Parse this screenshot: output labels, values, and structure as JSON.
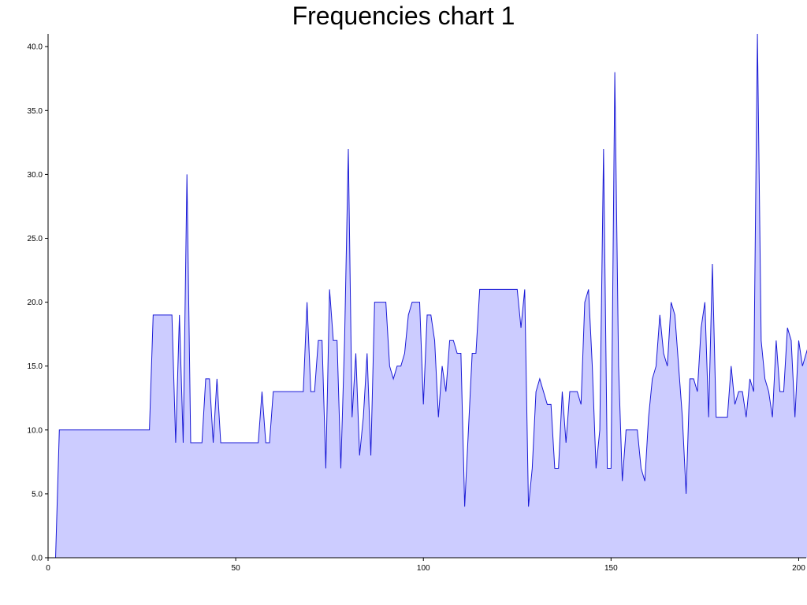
{
  "chart_data": {
    "type": "area",
    "title": "Frequencies chart 1",
    "xlabel": "",
    "ylabel": "",
    "xlim": [
      0,
      202
    ],
    "ylim": [
      0,
      41
    ],
    "x_ticks": [
      0,
      50,
      100,
      150,
      200
    ],
    "x_tick_labels": [
      "0",
      "50",
      "100",
      "150",
      "200"
    ],
    "y_ticks": [
      0,
      5,
      10,
      15,
      20,
      25,
      30,
      35,
      40
    ],
    "y_tick_labels": [
      "0.0",
      "5.0",
      "10.0",
      "15.0",
      "20.0",
      "25.0",
      "30.0",
      "35.0",
      "40.0"
    ],
    "grid": false,
    "legend": "none",
    "colors": {
      "line": "#1a1ad6",
      "fill": "#ccccff"
    },
    "series": [
      {
        "values": [
          0,
          0,
          0,
          10,
          10,
          10,
          10,
          10,
          10,
          10,
          10,
          10,
          10,
          10,
          10,
          10,
          10,
          10,
          10,
          10,
          10,
          10,
          10,
          10,
          10,
          10,
          10,
          10,
          19,
          19,
          19,
          19,
          19,
          19,
          9,
          19,
          9,
          30,
          9,
          9,
          9,
          9,
          14,
          14,
          9,
          14,
          9,
          9,
          9,
          9,
          9,
          9,
          9,
          9,
          9,
          9,
          9,
          13,
          9,
          9,
          13,
          13,
          13,
          13,
          13,
          13,
          13,
          13,
          13,
          20,
          13,
          13,
          17,
          17,
          7,
          21,
          17,
          17,
          7,
          17,
          32,
          11,
          16,
          8,
          11,
          16,
          8,
          20,
          20,
          20,
          20,
          15,
          14,
          15,
          15,
          16,
          19,
          20,
          20,
          20,
          12,
          19,
          19,
          17,
          11,
          15,
          13,
          17,
          17,
          16,
          16,
          4,
          10,
          16,
          16,
          21,
          21,
          21,
          21,
          21,
          21,
          21,
          21,
          21,
          21,
          21,
          18,
          21,
          4,
          7,
          13,
          14,
          13,
          12,
          12,
          7,
          7,
          13,
          9,
          13,
          13,
          13,
          12,
          20,
          21,
          15,
          7,
          10,
          32,
          7,
          7,
          38,
          15,
          6,
          10,
          10,
          10,
          10,
          7,
          6,
          11,
          14,
          15,
          19,
          16,
          15,
          20,
          19,
          15,
          11,
          5,
          14,
          14,
          13,
          18,
          20,
          11,
          23,
          11,
          11,
          11,
          11,
          15,
          12,
          13,
          13,
          11,
          14,
          13,
          41,
          17,
          14,
          13,
          11,
          17,
          13,
          13,
          18,
          17,
          11,
          17,
          15,
          16,
          17
        ]
      }
    ]
  }
}
